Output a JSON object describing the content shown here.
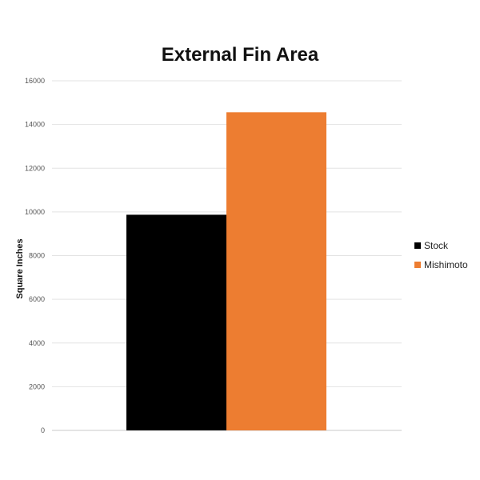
{
  "chart_data": {
    "type": "bar",
    "title": "External Fin Area",
    "xlabel": "",
    "ylabel": "Square Inches",
    "ylim": [
      0,
      16000
    ],
    "yticks": [
      0,
      2000,
      4000,
      6000,
      8000,
      10000,
      12000,
      14000,
      16000
    ],
    "grid": true,
    "legend_position": "right",
    "categories": [
      ""
    ],
    "series": [
      {
        "name": "Stock",
        "values": [
          9870
        ],
        "color": "#000000"
      },
      {
        "name": "Mishimoto",
        "values": [
          14560
        ],
        "color": "#ED7D31"
      }
    ]
  }
}
